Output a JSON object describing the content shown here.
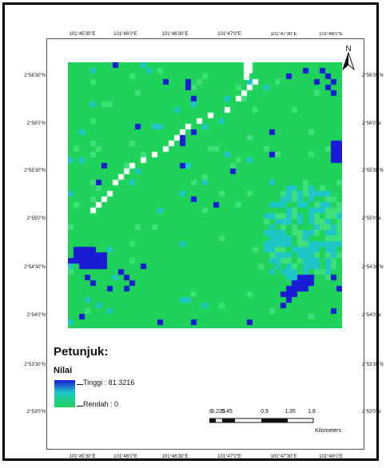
{
  "coords": {
    "longitude_ticks": [
      "101°45'30\"E",
      "101°46'0\"E",
      "101°46'30\"E",
      "101°47'0\"E",
      "101°47'30\"E",
      "101°48'0\"E"
    ],
    "latitude_ticks_left": [
      "2°56'30\"N",
      "2°56'0\"N",
      "2°55'30\"N",
      "2°55'0\"N",
      "2°54'30\"N",
      "2°54'0\"N",
      "2°53'30\"N",
      "2°53'0\"N"
    ],
    "latitude_ticks_right": [
      "2°56'30\"N",
      "2°56'0\"N",
      "2°55'30\"N",
      "2°55'0\"N",
      "2°54'30\"N",
      "2°54'0\"N",
      "2°53'30\"N",
      "2°53'0\"N"
    ]
  },
  "legend": {
    "title": "Petunjuk:",
    "field": "Nilai",
    "high_label": "Tinggi : 81.3216",
    "low_label": "Rendah : 0"
  },
  "north_arrow": {
    "label": "N"
  },
  "scale_bar": {
    "labels": [
      "0",
      "0.225",
      "0.45",
      "0.9",
      "1.35",
      "1.8"
    ],
    "unit": "Kilometers"
  },
  "colors": {
    "background_green": "#1ed25a",
    "high_blue": "#1b1bd6",
    "mid_cyan": "#1ec6c6",
    "light_green": "#3fe07a",
    "road_white": "#ffffff"
  }
}
